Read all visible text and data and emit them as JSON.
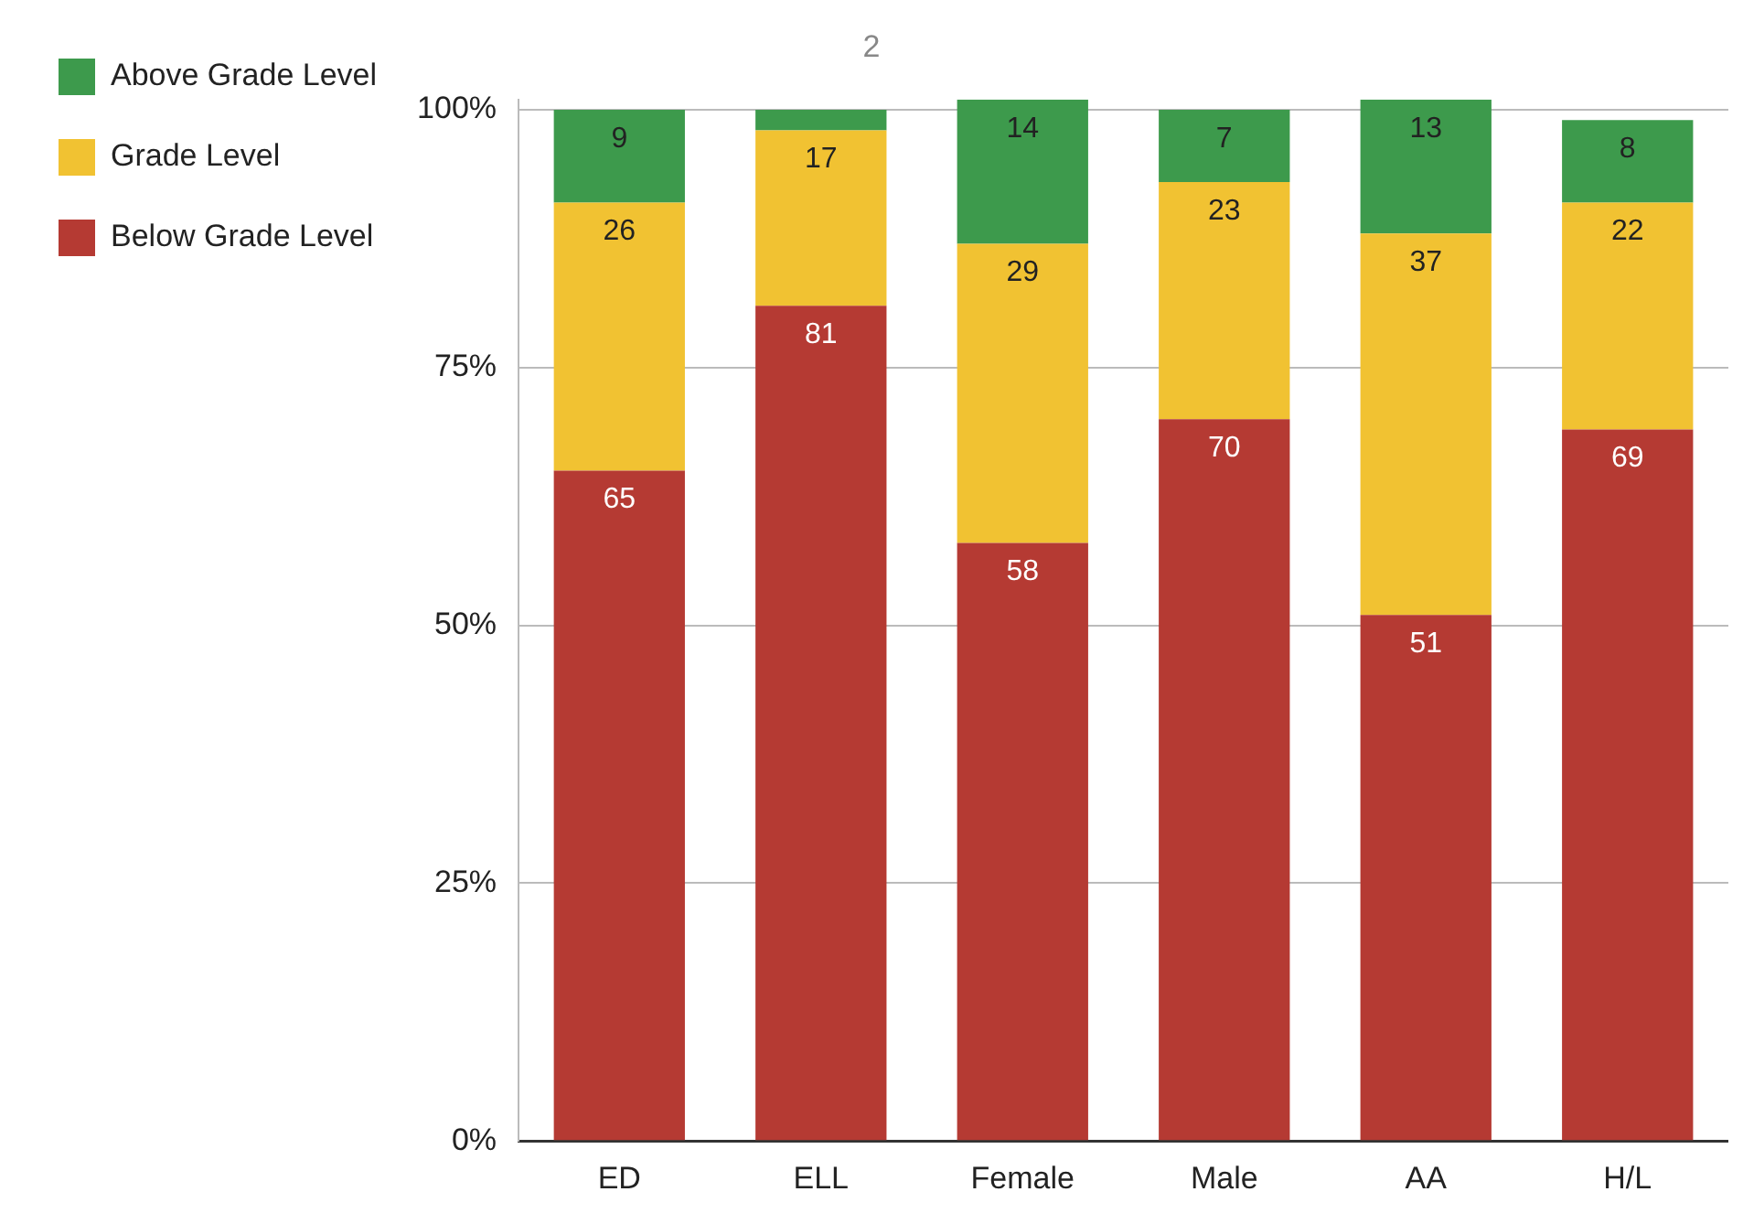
{
  "chart_data": {
    "type": "bar",
    "title": "2",
    "categories": [
      "ED",
      "ELL",
      "Female",
      "Male",
      "AA",
      "H/L"
    ],
    "stacked": true,
    "series": [
      {
        "name": "Below Grade Level",
        "color": "#b53a33",
        "values": [
          65,
          81,
          58,
          70,
          51,
          69
        ],
        "value_labels": [
          "65",
          "81",
          "58",
          "70",
          "51",
          "69"
        ]
      },
      {
        "name": "Grade Level",
        "color": "#f1c232",
        "values": [
          26,
          17,
          29,
          23,
          37,
          22
        ],
        "value_labels": [
          "26",
          "17",
          "29",
          "23",
          "37",
          "22"
        ]
      },
      {
        "name": "Above Grade Level",
        "color": "#3d9a4c",
        "values": [
          9,
          2,
          14,
          7,
          13,
          8
        ],
        "value_labels": [
          "9",
          null,
          "14",
          "7",
          "13",
          "8"
        ]
      }
    ],
    "ylim": [
      0,
      101
    ],
    "yticks": [
      {
        "value": 0,
        "label": "0%"
      },
      {
        "value": 25,
        "label": "25%"
      },
      {
        "value": 50,
        "label": "50%"
      },
      {
        "value": 75,
        "label": "75%"
      },
      {
        "value": 100,
        "label": "100%"
      }
    ],
    "grid": "y",
    "legend": "left"
  }
}
